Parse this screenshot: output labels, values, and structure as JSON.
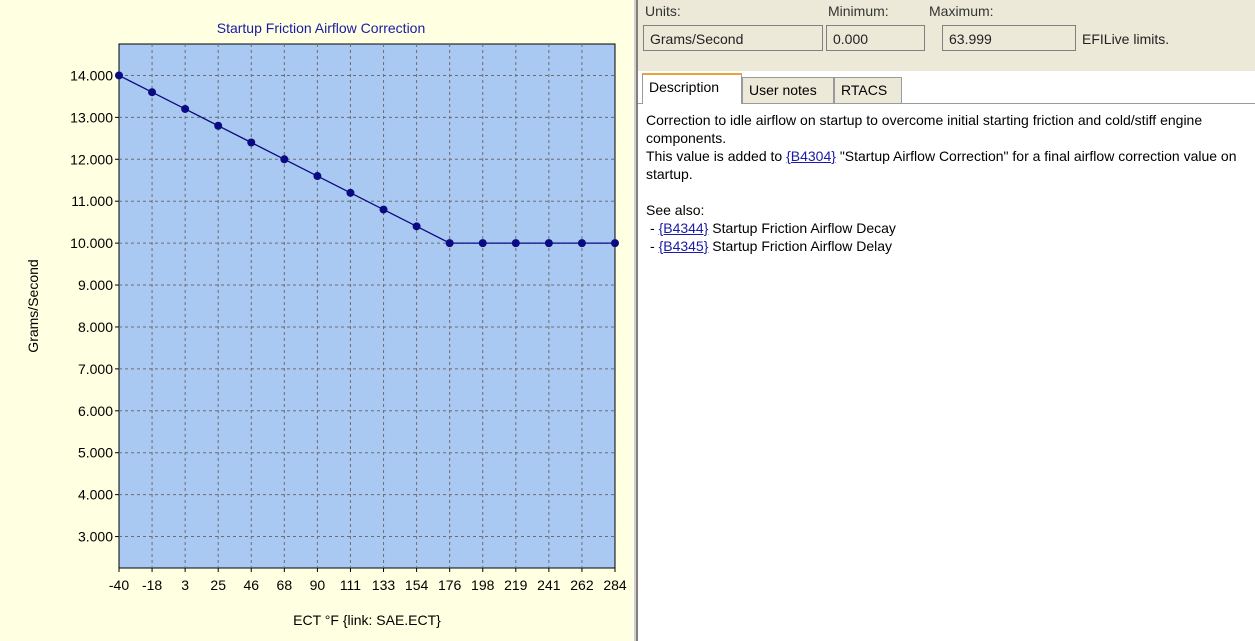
{
  "units": {
    "units_label": "Units:",
    "min_label": "Minimum:",
    "max_label": "Maximum:",
    "units_value": "Grams/Second",
    "min_value": "0.000",
    "max_value": "63.999",
    "limits_note": "EFILive limits."
  },
  "tabs": [
    {
      "label": "Description",
      "active": true
    },
    {
      "label": "User notes",
      "active": false
    },
    {
      "label": "RTACS",
      "active": false
    }
  ],
  "description": {
    "line1": "Correction to idle airflow on startup to overcome initial starting friction and cold/stiff engine components.",
    "line2_pre": "This value is added to ",
    "line2_link": "{B4304}",
    "line2_post": " \"Startup Airflow Correction\" for a final airflow correction value on startup.",
    "see_also": "See also:",
    "see_also_items": [
      {
        "prefix": "- ",
        "link": "{B4344}",
        "text": " Startup Friction Airflow Decay"
      },
      {
        "prefix": "- ",
        "link": "{B4345}",
        "text": " Startup Friction Airflow Delay"
      }
    ]
  },
  "chart_data": {
    "type": "line",
    "title": "Startup Friction Airflow Correction",
    "xlabel": "ECT °F {link: SAE.ECT}",
    "ylabel": "Grams/Second",
    "x": [
      "-40",
      "-18",
      "3",
      "25",
      "46",
      "68",
      "90",
      "111",
      "133",
      "154",
      "176",
      "198",
      "219",
      "241",
      "262",
      "284"
    ],
    "series": [
      {
        "values": [
          14.0,
          13.6,
          13.2,
          12.8,
          12.4,
          12.0,
          11.6,
          11.2,
          10.8,
          10.4,
          10.0,
          10.0,
          10.0,
          10.0,
          10.0,
          10.0
        ]
      }
    ],
    "y_ticks": [
      "3.000",
      "4.000",
      "5.000",
      "6.000",
      "7.000",
      "8.000",
      "9.000",
      "10.000",
      "11.000",
      "12.000",
      "13.000",
      "14.000"
    ],
    "ylim": [
      2.25,
      14.75
    ],
    "grid": true,
    "colors": {
      "plot_bg": "#a9c8f2",
      "line": "#0a0a82",
      "marker": "#0a0a82",
      "title": "#1a1aa6",
      "panel_bg": "#ffffe1"
    }
  }
}
